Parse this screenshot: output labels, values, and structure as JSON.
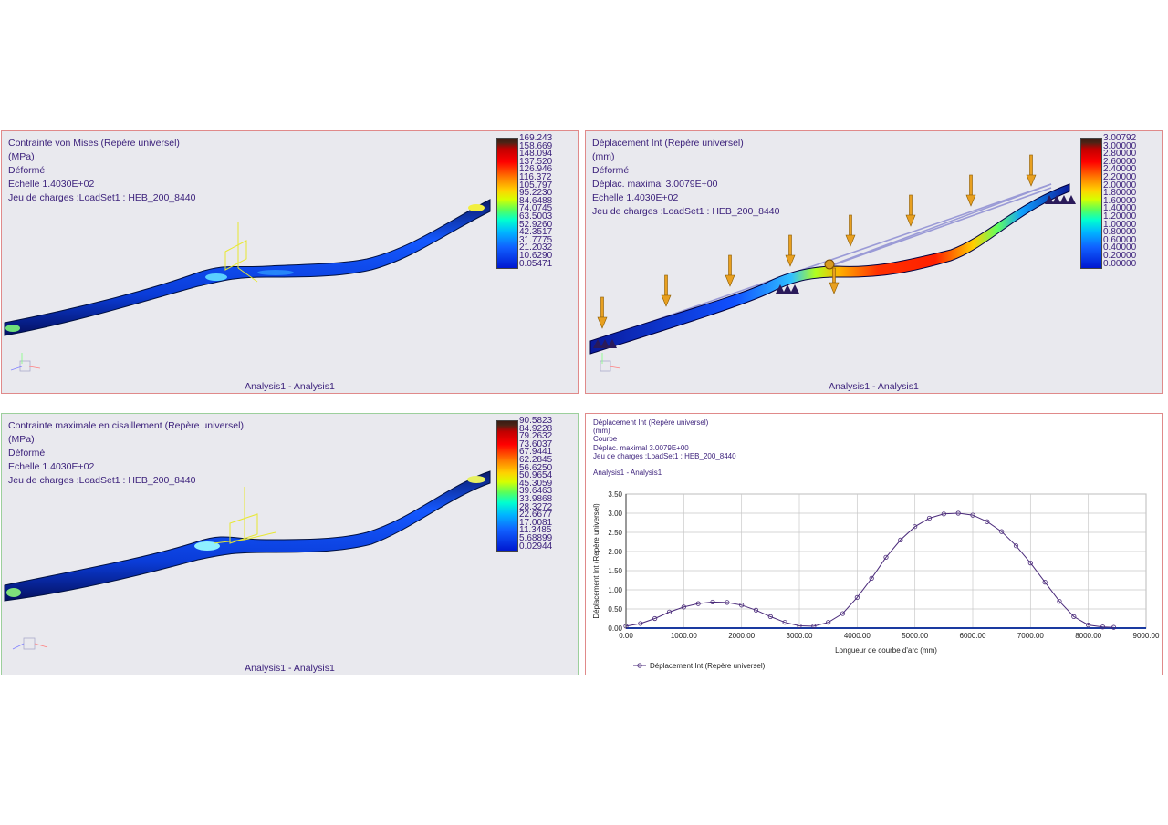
{
  "panels": {
    "von_mises": {
      "lines": [
        "Contrainte von Mises (Repère universel)",
        "(MPa)",
        "Déformé",
        "Echelle  1.4030E+02",
        "Jeu de charges :LoadSet1 :  HEB_200_8440"
      ],
      "legend": [
        "169.243",
        "158.669",
        "148.094",
        "137.520",
        "126.946",
        "116.372",
        "105.797",
        "95.2230",
        "84.6488",
        "74.0745",
        "63.5003",
        "52.9260",
        "42.3517",
        "31.7775",
        "21.2032",
        "10.6290",
        "0.05471"
      ],
      "footer": "Analysis1 - Analysis1"
    },
    "displacement": {
      "lines": [
        "Déplacement Int (Repère universel)",
        "(mm)",
        "Déformé",
        "Déplac. maximal  3.0079E+00",
        "Echelle  1.4030E+02",
        "Jeu de charges :LoadSet1 :  HEB_200_8440"
      ],
      "legend": [
        "3.00792",
        "3.00000",
        "2.80000",
        "2.60000",
        "2.40000",
        "2.20000",
        "2.00000",
        "1.80000",
        "1.60000",
        "1.40000",
        "1.20000",
        "1.00000",
        "0.80000",
        "0.60000",
        "0.40000",
        "0.20000",
        "0.00000"
      ],
      "footer": "Analysis1 - Analysis1"
    },
    "shear": {
      "lines": [
        "Contrainte maximale en cisaillement (Repère universel)",
        "(MPa)",
        "Déformé",
        "Echelle  1.4030E+02",
        "Jeu de charges :LoadSet1 :  HEB_200_8440"
      ],
      "legend": [
        "90.5823",
        "84.9228",
        "79.2632",
        "73.6037",
        "67.9441",
        "62.2845",
        "56.6250",
        "50.9654",
        "45.3059",
        "39.6463",
        "33.9868",
        "28.3272",
        "22.6677",
        "17.0081",
        "11.3485",
        "5.68899",
        "0.02944"
      ],
      "footer": "Analysis1 - Analysis1"
    },
    "graph": {
      "lines": [
        "Déplacement Int (Repère universel)",
        "(mm)",
        "Courbe",
        "Déplac. maximal  3.0079E+00",
        "Jeu de charges :LoadSet1 :  HEB_200_8440",
        "",
        "Analysis1 - Analysis1"
      ]
    }
  },
  "chart_data": {
    "type": "line",
    "xlabel": "Longueur de courbe d'arc (mm)",
    "ylabel": "Déplacement Int (Repère universel)",
    "legend": "Déplacement Int (Repère universel)",
    "xlim": [
      0,
      9000
    ],
    "ylim": [
      0,
      3.5
    ],
    "xticks": [
      "0.00",
      "1000.00",
      "2000.00",
      "3000.00",
      "4000.00",
      "5000.00",
      "6000.00",
      "7000.00",
      "8000.00",
      "9000.00"
    ],
    "yticks": [
      "0.00",
      "0.50",
      "1.00",
      "1.50",
      "2.00",
      "2.50",
      "3.00",
      "3.50"
    ],
    "x": [
      0,
      250,
      500,
      750,
      1000,
      1250,
      1500,
      1750,
      2000,
      2250,
      2500,
      2750,
      3000,
      3250,
      3500,
      3750,
      4000,
      4250,
      4500,
      4750,
      5000,
      5250,
      5500,
      5750,
      6000,
      6250,
      6500,
      6750,
      7000,
      7250,
      7500,
      7750,
      8000,
      8250,
      8440
    ],
    "y": [
      0.05,
      0.12,
      0.25,
      0.42,
      0.55,
      0.64,
      0.68,
      0.67,
      0.6,
      0.47,
      0.3,
      0.15,
      0.06,
      0.05,
      0.15,
      0.38,
      0.8,
      1.3,
      1.85,
      2.3,
      2.65,
      2.87,
      2.98,
      3.0,
      2.95,
      2.78,
      2.52,
      2.15,
      1.7,
      1.2,
      0.7,
      0.3,
      0.08,
      0.03,
      0.02
    ]
  }
}
